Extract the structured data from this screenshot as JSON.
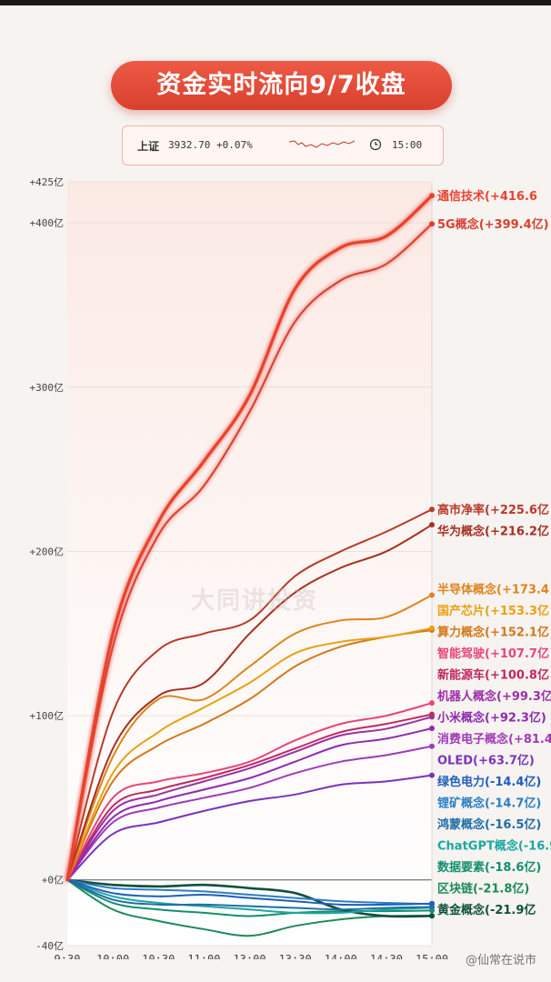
{
  "title": "资金实时流向9/7收盘",
  "index": {
    "name": "上证",
    "value": "3932.70 +0.07%",
    "time": "15:00"
  },
  "watermark": "大同讲投资",
  "weibo": "@仙常在说市",
  "chart_data": {
    "type": "line",
    "x": [
      "9:30",
      "10:00",
      "10:30",
      "11:00",
      "13:00",
      "13:30",
      "14:00",
      "14:30",
      "15:00"
    ],
    "ylim": [
      -40,
      425
    ],
    "yticks": [
      {
        "v": 425,
        "label": "+425亿"
      },
      {
        "v": 400,
        "label": "+400亿"
      },
      {
        "v": 300,
        "label": "+300亿"
      },
      {
        "v": 200,
        "label": "+200亿"
      },
      {
        "v": 100,
        "label": "+100亿"
      },
      {
        "v": 0,
        "label": "+0亿"
      },
      {
        "v": -40,
        "label": "-40亿"
      }
    ],
    "series": [
      {
        "name": "通信技术",
        "label": "通信技术(+416.6",
        "color": "#e8432f",
        "width": 3.2,
        "glow": true,
        "values": [
          0,
          150,
          218,
          255,
          295,
          360,
          385,
          392,
          416.6
        ]
      },
      {
        "name": "5G概念",
        "label": "5G概念(+399.4亿)",
        "color": "#d94030",
        "width": 2,
        "glow": true,
        "values": [
          0,
          142,
          210,
          240,
          285,
          340,
          365,
          375,
          399.4
        ]
      },
      {
        "name": "高市净率",
        "label": "高市净率(+225.6亿",
        "color": "#b83a2a",
        "width": 2,
        "values": [
          0,
          102,
          140,
          150,
          158,
          185,
          200,
          212,
          225.6
        ]
      },
      {
        "name": "华为概念",
        "label": "华为概念(+216.2亿",
        "color": "#a63020",
        "width": 2,
        "values": [
          0,
          80,
          112,
          120,
          150,
          175,
          190,
          200,
          216.2
        ]
      },
      {
        "name": "半导体概念",
        "label": "半导体概念(+173.4",
        "color": "#e0841d",
        "width": 2,
        "values": [
          0,
          75,
          110,
          110,
          130,
          150,
          158,
          160,
          173.4
        ]
      },
      {
        "name": "国产芯片",
        "label": "国产芯片(+153.3亿",
        "color": "#eba012",
        "width": 2,
        "values": [
          0,
          65,
          90,
          105,
          120,
          138,
          145,
          148,
          153.3
        ]
      },
      {
        "name": "算力概念",
        "label": "算力概念(+152.1亿",
        "color": "#d5771a",
        "width": 2,
        "values": [
          0,
          60,
          82,
          95,
          110,
          130,
          142,
          148,
          152.1
        ]
      },
      {
        "name": "智能驾驶",
        "label": "智能驾驶(+107.7亿",
        "color": "#e8457a",
        "width": 2,
        "values": [
          0,
          50,
          60,
          65,
          72,
          85,
          95,
          100,
          107.7
        ]
      },
      {
        "name": "新能源车",
        "label": "新能源车(+100.8亿",
        "color": "#c02860",
        "width": 2,
        "values": [
          0,
          45,
          55,
          62,
          70,
          80,
          90,
          95,
          100.8
        ]
      },
      {
        "name": "机器人概念",
        "label": "机器人概念(+99.3亿",
        "color": "#9b2fa6",
        "width": 2,
        "values": [
          0,
          42,
          52,
          60,
          68,
          78,
          88,
          92,
          99.3
        ]
      },
      {
        "name": "小米概念",
        "label": "小米概念(+92.3亿)",
        "color": "#8e2ab0",
        "width": 2,
        "values": [
          0,
          38,
          48,
          55,
          62,
          72,
          82,
          86,
          92.3
        ]
      },
      {
        "name": "消费电子概念",
        "label": "消费电子概念(+81.4",
        "color": "#a03ab6",
        "width": 2,
        "values": [
          0,
          35,
          44,
          50,
          56,
          65,
          72,
          76,
          81.4
        ]
      },
      {
        "name": "OLED",
        "label": "OLED(+63.7亿)",
        "color": "#7b33b8",
        "width": 2,
        "values": [
          0,
          28,
          35,
          42,
          48,
          52,
          58,
          60,
          63.7
        ]
      },
      {
        "name": "绿色电力",
        "label": "绿色电力(-14.4亿)",
        "color": "#1e5fb8",
        "width": 2,
        "values": [
          0,
          -8,
          -10,
          -9,
          -11,
          -13,
          -15,
          -15,
          -14.4
        ]
      },
      {
        "name": "锂矿概念",
        "label": "锂矿概念(-14.7亿)",
        "color": "#2b7fc4",
        "width": 2,
        "values": [
          0,
          -5,
          -6,
          -7,
          -9,
          -11,
          -13,
          -14,
          -14.7
        ]
      },
      {
        "name": "鸿蒙概念",
        "label": "鸿蒙概念(-16.5亿)",
        "color": "#1f6ea6",
        "width": 2,
        "values": [
          0,
          -12,
          -15,
          -15,
          -16,
          -17,
          -18,
          -17,
          -16.5
        ]
      },
      {
        "name": "ChatGPT概念",
        "label": "ChatGPT概念(-16.9",
        "color": "#1aa8a0",
        "width": 2,
        "values": [
          0,
          -10,
          -14,
          -16,
          -18,
          -20,
          -20,
          -18,
          -16.9
        ]
      },
      {
        "name": "黄金概念",
        "label": "黄金概念(-21.9亿",
        "color": "#11503c",
        "width": 2.6,
        "values": [
          0,
          -3,
          -4,
          -3,
          -5,
          -8,
          -18,
          -22,
          -21.9
        ]
      },
      {
        "name": "区块链",
        "label": "区块链(-21.8亿)",
        "color": "#1e8a5a",
        "width": 2,
        "values": [
          0,
          -18,
          -25,
          -30,
          -34,
          -28,
          -24,
          -22,
          -21.8
        ]
      },
      {
        "name": "数据要素",
        "label": "数据要素(-18.6亿)",
        "color": "#138f6e",
        "width": 2,
        "values": [
          0,
          -14,
          -18,
          -20,
          -22,
          -20,
          -19,
          -19,
          -18.6
        ]
      }
    ],
    "label_colors_override": {
      "通信技术": "#e8432f",
      "5G概念": "#d94030",
      "黄金概念": "#11503c"
    }
  }
}
